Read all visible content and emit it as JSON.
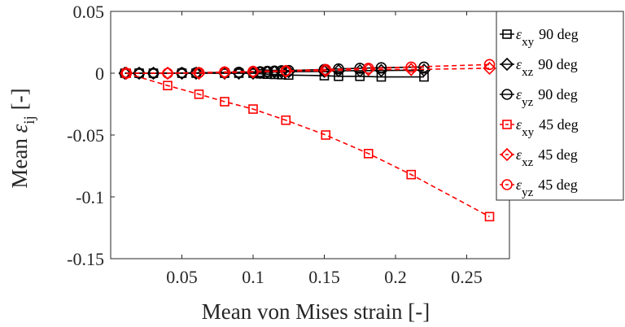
{
  "chart_data": {
    "type": "line",
    "xlabel": "Mean von Mises strain [-]",
    "ylabel_main": "Mean ",
    "ylabel_symbol": "ε",
    "ylabel_sub": "ij",
    "ylabel_unit": " [-]",
    "xlim": [
      0.0,
      0.28
    ],
    "ylim": [
      -0.15,
      0.05
    ],
    "x_ticks": [
      0.05,
      0.1,
      0.15,
      0.2,
      0.25
    ],
    "x_tick_labels": [
      "0.05",
      "0.1",
      "0.15",
      "0.2",
      "0.25"
    ],
    "y_ticks": [
      -0.15,
      -0.1,
      -0.05,
      0,
      0.05
    ],
    "y_tick_labels": [
      "-0.15",
      "-0.1",
      "-0.05",
      "0",
      "0.05"
    ],
    "legend_position": "outside-right",
    "series": [
      {
        "symbol": "ε",
        "sub": "xy",
        "suffix": "90 deg",
        "color": "#000000",
        "marker": "square",
        "dashed": false,
        "x": [
          0.01,
          0.02,
          0.03,
          0.05,
          0.06,
          0.08,
          0.09,
          0.1,
          0.105,
          0.11,
          0.115,
          0.12,
          0.125,
          0.15,
          0.16,
          0.175,
          0.19,
          0.22
        ],
        "y": [
          0,
          0,
          0,
          0,
          0,
          0,
          0,
          0,
          -0.0005,
          -0.0008,
          -0.001,
          -0.0012,
          -0.0015,
          -0.002,
          -0.0025,
          -0.0025,
          -0.003,
          -0.003
        ]
      },
      {
        "symbol": "ε",
        "sub": "xz",
        "suffix": "90 deg",
        "color": "#000000",
        "marker": "diamond",
        "dashed": false,
        "x": [
          0.01,
          0.02,
          0.03,
          0.05,
          0.06,
          0.08,
          0.09,
          0.1,
          0.105,
          0.11,
          0.115,
          0.12,
          0.125,
          0.15,
          0.16,
          0.175,
          0.19,
          0.22
        ],
        "y": [
          0,
          0,
          0,
          0,
          0,
          0,
          0,
          0,
          0.0005,
          0.0008,
          0.001,
          0.001,
          0.0012,
          0.0015,
          0.002,
          0.002,
          0.0022,
          0.0025
        ]
      },
      {
        "symbol": "ε",
        "sub": "yz",
        "suffix": "90 deg",
        "color": "#000000",
        "marker": "circle",
        "dashed": false,
        "x": [
          0.01,
          0.02,
          0.03,
          0.05,
          0.06,
          0.08,
          0.09,
          0.1,
          0.105,
          0.11,
          0.115,
          0.12,
          0.125,
          0.15,
          0.16,
          0.175,
          0.19,
          0.22
        ],
        "y": [
          0,
          0,
          0,
          0.0002,
          0.0004,
          0.0006,
          0.0008,
          0.001,
          0.0012,
          0.0015,
          0.0018,
          0.002,
          0.0022,
          0.003,
          0.0035,
          0.004,
          0.0045,
          0.005
        ]
      },
      {
        "symbol": "ε",
        "sub": "xy",
        "suffix": "45 deg",
        "color": "#ff0000",
        "marker": "square",
        "dashed": true,
        "x": [
          0.011,
          0.04,
          0.062,
          0.08,
          0.1,
          0.123,
          0.151,
          0.181,
          0.211,
          0.266
        ],
        "y": [
          0,
          -0.01,
          -0.017,
          -0.023,
          -0.029,
          -0.038,
          -0.05,
          -0.065,
          -0.082,
          -0.116
        ]
      },
      {
        "symbol": "ε",
        "sub": "xz",
        "suffix": "45 deg",
        "color": "#ff0000",
        "marker": "diamond",
        "dashed": true,
        "x": [
          0.011,
          0.04,
          0.062,
          0.08,
          0.1,
          0.123,
          0.151,
          0.181,
          0.211,
          0.266
        ],
        "y": [
          0,
          0,
          0,
          0.0005,
          0.001,
          0.0015,
          0.002,
          0.003,
          0.003,
          0.004
        ]
      },
      {
        "symbol": "ε",
        "sub": "yz",
        "suffix": "45 deg",
        "color": "#ff0000",
        "marker": "circle",
        "dashed": true,
        "x": [
          0.011,
          0.04,
          0.062,
          0.08,
          0.1,
          0.123,
          0.151,
          0.181,
          0.211,
          0.266
        ],
        "y": [
          0,
          0,
          0.0005,
          0.001,
          0.0015,
          0.002,
          0.003,
          0.004,
          0.005,
          0.007
        ]
      }
    ]
  }
}
